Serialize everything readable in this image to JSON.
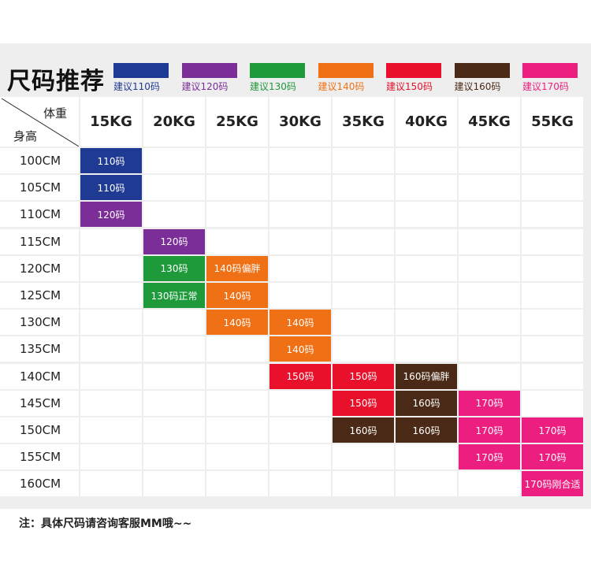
{
  "title": "尺码推荐",
  "colors": {
    "s110": "#1f3a93",
    "s120": "#7b2d98",
    "s130": "#1e9a3a",
    "s140": "#f07016",
    "s150": "#e8102a",
    "s160": "#4a2a16",
    "s170": "#ec1f80"
  },
  "legend": [
    {
      "label": "建议110码",
      "color_key": "s110"
    },
    {
      "label": "建议120码",
      "color_key": "s120"
    },
    {
      "label": "建议130码",
      "color_key": "s130"
    },
    {
      "label": "建议140码",
      "color_key": "s140"
    },
    {
      "label": "建议150码",
      "color_key": "s150"
    },
    {
      "label": "建议160码",
      "color_key": "s160"
    },
    {
      "label": "建议170码",
      "color_key": "s170"
    }
  ],
  "table": {
    "corner_weight": "体重",
    "corner_height": "身高",
    "weights": [
      "15KG",
      "20KG",
      "25KG",
      "30KG",
      "35KG",
      "40KG",
      "45KG",
      "55KG"
    ],
    "rows": [
      {
        "height": "100CM",
        "cells": [
          {
            "col": 0,
            "text": "110码",
            "color_key": "s110"
          }
        ]
      },
      {
        "height": "105CM",
        "cells": [
          {
            "col": 0,
            "text": "110码",
            "color_key": "s110"
          }
        ]
      },
      {
        "height": "110CM",
        "cells": [
          {
            "col": 0,
            "text": "120码",
            "color_key": "s120"
          }
        ]
      },
      {
        "height": "115CM",
        "cells": [
          {
            "col": 1,
            "text": "120码",
            "color_key": "s120"
          }
        ]
      },
      {
        "height": "120CM",
        "cells": [
          {
            "col": 1,
            "text": "130码",
            "color_key": "s130"
          },
          {
            "col": 2,
            "text": "140码偏胖",
            "color_key": "s140"
          }
        ]
      },
      {
        "height": "125CM",
        "cells": [
          {
            "col": 1,
            "text": "130码正常",
            "color_key": "s130"
          },
          {
            "col": 2,
            "text": "140码",
            "color_key": "s140"
          }
        ]
      },
      {
        "height": "130CM",
        "cells": [
          {
            "col": 2,
            "text": "140码",
            "color_key": "s140"
          },
          {
            "col": 3,
            "text": "140码",
            "color_key": "s140"
          }
        ]
      },
      {
        "height": "135CM",
        "cells": [
          {
            "col": 3,
            "text": "140码",
            "color_key": "s140"
          }
        ]
      },
      {
        "height": "140CM",
        "cells": [
          {
            "col": 3,
            "text": "150码",
            "color_key": "s150"
          },
          {
            "col": 4,
            "text": "150码",
            "color_key": "s150"
          },
          {
            "col": 5,
            "text": "160码偏胖",
            "color_key": "s160"
          }
        ]
      },
      {
        "height": "145CM",
        "cells": [
          {
            "col": 4,
            "text": "150码",
            "color_key": "s150"
          },
          {
            "col": 5,
            "text": "160码",
            "color_key": "s160"
          },
          {
            "col": 6,
            "text": "170码",
            "color_key": "s170"
          }
        ]
      },
      {
        "height": "150CM",
        "cells": [
          {
            "col": 4,
            "text": "160码",
            "color_key": "s160"
          },
          {
            "col": 5,
            "text": "160码",
            "color_key": "s160"
          },
          {
            "col": 6,
            "text": "170码",
            "color_key": "s170"
          },
          {
            "col": 7,
            "text": "170码",
            "color_key": "s170"
          }
        ]
      },
      {
        "height": "155CM",
        "cells": [
          {
            "col": 6,
            "text": "170码",
            "color_key": "s170"
          },
          {
            "col": 7,
            "text": "170码",
            "color_key": "s170"
          }
        ]
      },
      {
        "height": "160CM",
        "cells": [
          {
            "col": 7,
            "text": "170码刚合适",
            "color_key": "s170"
          }
        ]
      }
    ]
  },
  "note": "注：具体尺码请咨询客服MM哦~~"
}
